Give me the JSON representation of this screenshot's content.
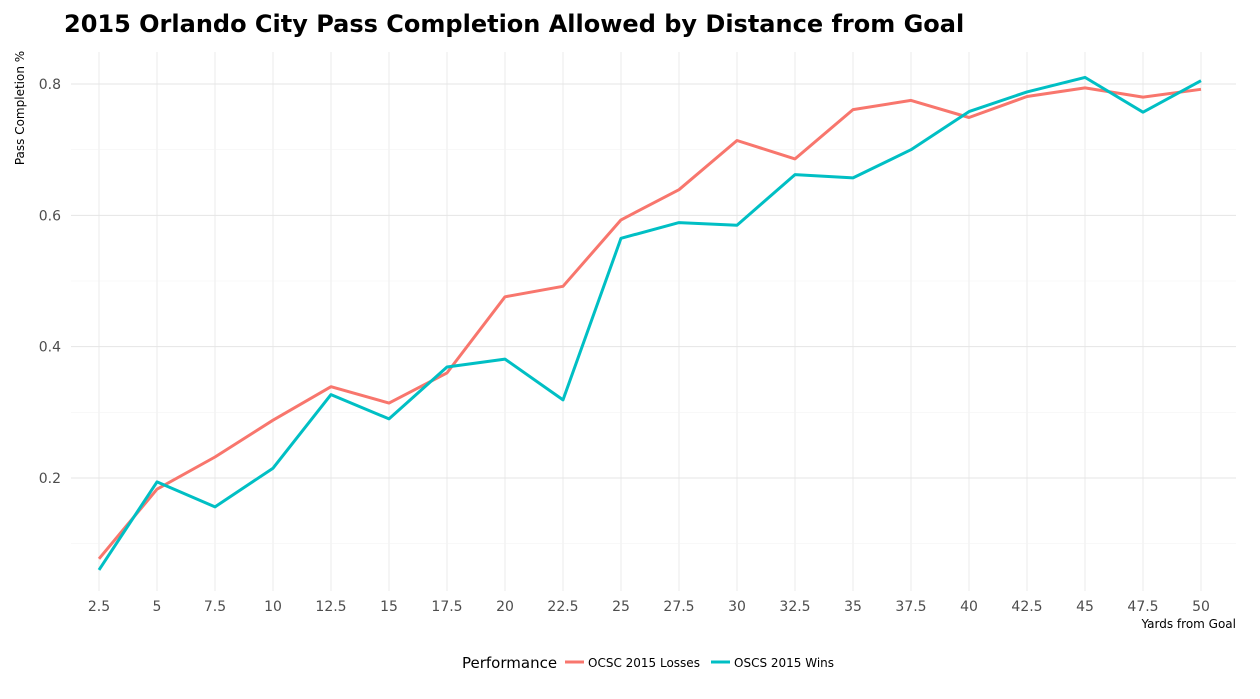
{
  "chart_data": {
    "type": "line",
    "title": "2015 Orlando City Pass Completion Allowed by Distance from Goal",
    "xlabel": "Yards from Goal",
    "ylabel": "Pass Completion %",
    "x": [
      2.5,
      5,
      7.5,
      10,
      12.5,
      15,
      17.5,
      20,
      22.5,
      25,
      27.5,
      30,
      32.5,
      35,
      37.5,
      40,
      42.5,
      45,
      47.5,
      50
    ],
    "x_tick_labels": [
      "2.5",
      "5",
      "7.5",
      "10",
      "12.5",
      "15",
      "17.5",
      "20",
      "22.5",
      "25",
      "27.5",
      "30",
      "32.5",
      "35",
      "37.5",
      "40",
      "42.5",
      "45",
      "47.5",
      "50"
    ],
    "y_ticks": [
      0.2,
      0.4,
      0.6,
      0.8
    ],
    "y_tick_labels": [
      "0.2",
      "0.4",
      "0.6",
      "0.8"
    ],
    "ylim": [
      0.03,
      0.85
    ],
    "xlim": [
      2.5,
      50
    ],
    "grid": true,
    "legend": {
      "title": "Performance",
      "position": "bottom"
    },
    "series": [
      {
        "name": "OCSC 2015 Losses",
        "color": "#f8766d",
        "values": [
          0.077,
          0.183,
          0.232,
          0.288,
          0.339,
          0.314,
          0.36,
          0.476,
          0.492,
          0.593,
          0.639,
          0.714,
          0.686,
          0.761,
          0.775,
          0.749,
          0.781,
          0.794,
          0.78,
          0.792
        ]
      },
      {
        "name": "OSCS 2015 Wins",
        "color": "#00bfc4",
        "values": [
          0.06,
          0.194,
          0.156,
          0.215,
          0.327,
          0.29,
          0.369,
          0.381,
          0.319,
          0.565,
          0.589,
          0.585,
          0.662,
          0.657,
          0.7,
          0.758,
          0.788,
          0.81,
          0.757,
          0.805
        ]
      }
    ]
  }
}
